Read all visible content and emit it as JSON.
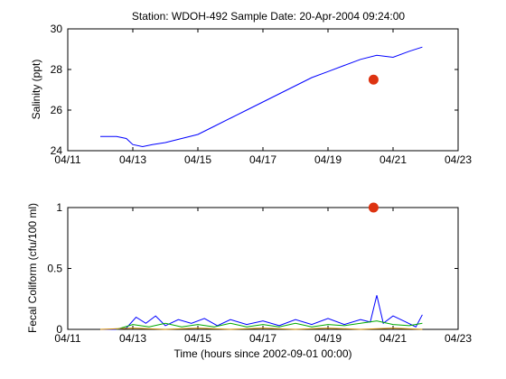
{
  "title": "Station: WDOH-492  Sample Date: 20-Apr-2004 09:24:00",
  "chart_data": [
    {
      "id": "salinity",
      "type": "line",
      "ylabel": "Salinity (ppt)",
      "xlabel": "",
      "xlim": [
        "04/11",
        "04/23"
      ],
      "ylim": [
        24,
        30
      ],
      "xticks": [
        "04/11",
        "04/13",
        "04/15",
        "04/17",
        "04/19",
        "04/21",
        "04/23"
      ],
      "yticks": [
        24,
        26,
        28,
        30
      ],
      "grid": false,
      "series": [
        {
          "color": "#0000ff",
          "x": [
            "04/12.0",
            "04/12.5",
            "04/12.8",
            "04/13.0",
            "04/13.3",
            "04/13.6",
            "04/14.0",
            "04/14.5",
            "04/15.0",
            "04/15.5",
            "04/16.0",
            "04/16.5",
            "04/17.0",
            "04/17.5",
            "04/18.0",
            "04/18.5",
            "04/19.0",
            "04/19.5",
            "04/20.0",
            "04/20.5",
            "04/21.0",
            "04/21.5",
            "04/21.9"
          ],
          "x_days": [
            12.0,
            12.5,
            12.8,
            13.0,
            13.3,
            13.6,
            14.0,
            14.5,
            15.0,
            15.5,
            16.0,
            16.5,
            17.0,
            17.5,
            18.0,
            18.5,
            19.0,
            19.5,
            20.0,
            20.5,
            21.0,
            21.5,
            21.9
          ],
          "y": [
            24.7,
            24.7,
            24.6,
            24.3,
            24.2,
            24.3,
            24.4,
            24.6,
            24.8,
            25.2,
            25.6,
            26.0,
            26.4,
            26.8,
            27.2,
            27.6,
            27.9,
            28.2,
            28.5,
            28.7,
            28.6,
            28.9,
            29.1
          ]
        }
      ],
      "markers": [
        {
          "x_days": 20.4,
          "y": 27.5,
          "color": "#dd3311"
        }
      ]
    },
    {
      "id": "fecal",
      "type": "line",
      "ylabel": "Fecal Coliform (cfu/100 ml)",
      "xlabel": "Time (hours since 2002-09-01 00:00)",
      "xlim": [
        "04/11",
        "04/23"
      ],
      "ylim": [
        0,
        1
      ],
      "xticks": [
        "04/11",
        "04/13",
        "04/15",
        "04/17",
        "04/19",
        "04/21",
        "04/23"
      ],
      "yticks": [
        0,
        0.5,
        1
      ],
      "grid": false,
      "series": [
        {
          "color": "#0000ff",
          "x_days": [
            12.0,
            12.5,
            12.8,
            13.1,
            13.4,
            13.7,
            14.0,
            14.4,
            14.8,
            15.2,
            15.6,
            16.0,
            16.5,
            17.0,
            17.5,
            18.0,
            18.5,
            19.0,
            19.5,
            20.0,
            20.3,
            20.5,
            20.7,
            21.0,
            21.4,
            21.7,
            21.9
          ],
          "y": [
            0.0,
            0.0,
            0.01,
            0.1,
            0.05,
            0.11,
            0.03,
            0.08,
            0.05,
            0.09,
            0.03,
            0.08,
            0.04,
            0.07,
            0.03,
            0.08,
            0.04,
            0.09,
            0.04,
            0.08,
            0.06,
            0.28,
            0.05,
            0.11,
            0.06,
            0.02,
            0.12
          ]
        },
        {
          "color": "#00aa00",
          "x_days": [
            12.5,
            13.0,
            13.5,
            14.0,
            14.5,
            15.0,
            15.5,
            16.0,
            16.5,
            17.0,
            17.5,
            18.0,
            18.5,
            19.0,
            19.5,
            20.0,
            20.5,
            21.0,
            21.5,
            21.9
          ],
          "y": [
            0.0,
            0.04,
            0.02,
            0.05,
            0.02,
            0.04,
            0.02,
            0.05,
            0.02,
            0.04,
            0.02,
            0.05,
            0.02,
            0.04,
            0.03,
            0.05,
            0.07,
            0.04,
            0.03,
            0.05
          ]
        },
        {
          "color": "#cc8800",
          "x_days": [
            12.0,
            13.0,
            14.0,
            15.0,
            16.0,
            17.0,
            18.0,
            19.0,
            20.0,
            21.0,
            21.9
          ],
          "y": [
            0.0,
            0.01,
            0.0,
            0.01,
            0.0,
            0.01,
            0.0,
            0.01,
            0.0,
            0.01,
            0.0
          ]
        }
      ],
      "markers": [
        {
          "x_days": 20.4,
          "y": 1.0,
          "color": "#dd3311"
        }
      ]
    }
  ]
}
